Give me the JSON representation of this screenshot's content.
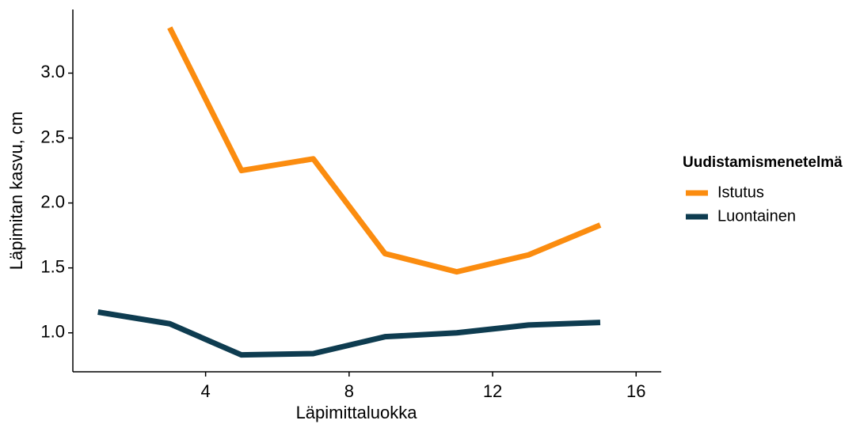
{
  "chart_data": {
    "type": "line",
    "xlabel": "Läpimittaluokka",
    "ylabel": "Läpimitan kasvu, cm",
    "legend_title": "Uudistamismenetelmä",
    "legend": "right",
    "x": [
      1,
      3,
      5,
      7,
      9,
      11,
      13,
      15
    ],
    "series": [
      {
        "name": "Istutus",
        "color": "#fb8c0f",
        "values": [
          null,
          3.35,
          2.25,
          2.34,
          1.61,
          1.47,
          1.6,
          1.83
        ]
      },
      {
        "name": "Luontainen",
        "color": "#0e3c50",
        "values": [
          1.16,
          1.07,
          0.83,
          0.84,
          0.97,
          1.0,
          1.06,
          1.08
        ]
      }
    ],
    "xlim": [
      0.3,
      16.7
    ],
    "xticks": [
      4,
      8,
      12,
      16
    ],
    "ylim": [
      0.7,
      3.49
    ],
    "yticks": [
      {
        "value": 1,
        "label": "1.0"
      },
      {
        "value": 1.5,
        "label": "1.5"
      },
      {
        "value": 2,
        "label": "2.0"
      },
      {
        "value": 2.5,
        "label": "2.5"
      },
      {
        "value": 3,
        "label": "3.0"
      }
    ]
  }
}
